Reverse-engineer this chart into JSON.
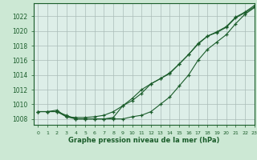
{
  "title": "Graphe pression niveau de la mer (hPa)",
  "background_color": "#cce8d4",
  "plot_bg_color": "#ddeee8",
  "grid_color": "#aabcb8",
  "line_color": "#1a5c2a",
  "xlim": [
    -0.5,
    23
  ],
  "ylim": [
    1007.2,
    1023.8
  ],
  "xticks": [
    0,
    1,
    2,
    3,
    4,
    5,
    6,
    7,
    8,
    9,
    10,
    11,
    12,
    13,
    14,
    15,
    16,
    17,
    18,
    19,
    20,
    21,
    22,
    23
  ],
  "yticks": [
    1008,
    1010,
    1012,
    1014,
    1016,
    1018,
    1020,
    1022
  ],
  "series": [
    [
      1009.0,
      1009.0,
      1009.0,
      1008.5,
      1008.0,
      1008.0,
      1008.0,
      1008.0,
      1008.0,
      1008.0,
      1008.3,
      1008.5,
      1009.0,
      1010.0,
      1011.0,
      1012.5,
      1014.0,
      1016.0,
      1017.5,
      1018.5,
      1019.5,
      1021.0,
      1022.3,
      1023.2
    ],
    [
      1009.0,
      1009.0,
      1009.2,
      1008.3,
      1008.2,
      1008.2,
      1008.3,
      1008.5,
      1009.0,
      1009.8,
      1010.5,
      1011.5,
      1012.8,
      1013.5,
      1014.2,
      1015.5,
      1016.8,
      1018.2,
      1019.3,
      1019.8,
      1020.5,
      1021.8,
      1022.5,
      1023.3
    ],
    [
      1009.0,
      1009.0,
      1009.0,
      1008.3,
      1008.0,
      1008.0,
      1008.0,
      1008.0,
      1008.2,
      1009.8,
      1010.8,
      1012.0,
      1012.8,
      1013.5,
      1014.3,
      1015.5,
      1016.8,
      1018.3,
      1019.3,
      1019.9,
      1020.6,
      1021.9,
      1022.6,
      1023.5
    ]
  ]
}
